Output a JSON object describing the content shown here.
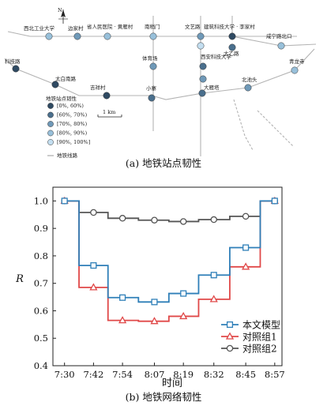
{
  "map": {
    "caption": "(a) 地铁站点韧性",
    "compass": "N",
    "scale_label": "1 km",
    "legend": {
      "title": "地铁站点韧性",
      "items": [
        {
          "label": "[0%, 60%)",
          "color": "#2f4a62"
        },
        {
          "label": "[60%, 70%)",
          "color": "#4a6f8d"
        },
        {
          "label": "[70%, 80%)",
          "color": "#6f99b8"
        },
        {
          "label": "[80%, 90%)",
          "color": "#98c0da"
        },
        {
          "label": "[90%, 100%]",
          "color": "#c3def0"
        }
      ],
      "line_label": "地铁线路"
    },
    "stations": [
      {
        "name": "西北工业大学",
        "tier": 3
      },
      {
        "name": "边家村",
        "tier": 2
      },
      {
        "name": "省人民医院 · 黄雁村",
        "tier": 3
      },
      {
        "name": "南稍门",
        "tier": 3
      },
      {
        "name": "文艺路",
        "tier": 2
      },
      {
        "name": "建筑科技大学 · 李家村",
        "tier": 0
      },
      {
        "name": "太乙路",
        "tier": 1
      },
      {
        "name": "咸宁路北口",
        "tier": 3
      },
      {
        "name": "科技路",
        "tier": 0
      },
      {
        "name": "太白南路",
        "tier": 0
      },
      {
        "name": "吉祥村",
        "tier": 0
      },
      {
        "name": "体育场",
        "tier": 2
      },
      {
        "name": "西安科技大学",
        "tier": 1
      },
      {
        "name": "小寨",
        "tier": 1
      },
      {
        "name": "大雁塔",
        "tier": 1
      },
      {
        "name": "北池头",
        "tier": 2
      },
      {
        "name": "青龙寺",
        "tier": 3
      },
      {
        "name": "",
        "tier": 4
      },
      {
        "name": "",
        "tier": 2
      }
    ]
  },
  "chart_data": {
    "type": "line",
    "step": true,
    "categories": [
      "7:30",
      "7:42",
      "7:54",
      "8:07",
      "8:19",
      "8:32",
      "8:45",
      "8:57"
    ],
    "xlabel": "时间",
    "ylabel": "R",
    "ylim": [
      0.4,
      1.05
    ],
    "yticks": [
      "0.4",
      "0.5",
      "0.6",
      "0.7",
      "0.8",
      "0.9",
      "1.0"
    ],
    "grid": false,
    "legend_position": "bottom-right",
    "caption": "(b) 地铁网络韧性",
    "series": [
      {
        "name": "本文模型",
        "color": "#2f7fb8",
        "marker": "square",
        "x": [
          7.5,
          7.7,
          7.9,
          8.12,
          8.32,
          8.53,
          8.75,
          8.95
        ],
        "values": [
          1.0,
          0.765,
          0.648,
          0.632,
          0.663,
          0.73,
          0.83,
          1.0
        ]
      },
      {
        "name": "对照组1",
        "color": "#e04848",
        "marker": "triangle",
        "x": [
          7.5,
          7.7,
          7.9,
          8.12,
          8.32,
          8.53,
          8.75,
          8.95
        ],
        "values": [
          1.0,
          0.685,
          0.565,
          0.562,
          0.58,
          0.642,
          0.76,
          1.0
        ]
      },
      {
        "name": "对照组2",
        "color": "#555555",
        "marker": "circle",
        "x": [
          7.5,
          7.7,
          7.9,
          8.12,
          8.32,
          8.53,
          8.75,
          8.95
        ],
        "values": [
          1.0,
          0.958,
          0.937,
          0.93,
          0.925,
          0.932,
          0.944,
          1.0
        ]
      }
    ]
  }
}
